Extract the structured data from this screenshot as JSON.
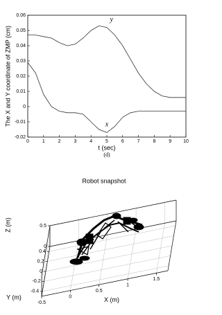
{
  "chart_data": [
    {
      "type": "line",
      "title": "(d)",
      "xlabel": "t (sec)",
      "ylabel": "The X and Y coordinate of ZMP (cm)",
      "x": [
        0,
        0.5,
        1,
        1.5,
        2,
        2.5,
        3,
        3.5,
        4,
        4.5,
        5,
        5.5,
        6,
        6.5,
        7,
        7.5,
        8,
        8.5,
        9,
        9.5,
        10
      ],
      "series": [
        {
          "name": "y",
          "color": "#333333",
          "values": [
            0.047,
            0.047,
            0.046,
            0.045,
            0.042,
            0.04,
            0.041,
            0.045,
            0.05,
            0.053,
            0.052,
            0.047,
            0.04,
            0.031,
            0.022,
            0.015,
            0.01,
            0.007,
            0.006,
            0.006,
            0.006
          ]
        },
        {
          "name": "x",
          "color": "#333333",
          "values": [
            0.029,
            0.022,
            0.008,
            0.0,
            -0.003,
            -0.004,
            -0.004,
            -0.005,
            -0.01,
            -0.015,
            -0.017,
            -0.013,
            -0.007,
            -0.004,
            -0.003,
            -0.003,
            -0.003,
            -0.003,
            -0.003,
            -0.003,
            -0.003
          ]
        }
      ],
      "xlim": [
        0,
        10
      ],
      "xticks": [
        0,
        1,
        2,
        3,
        4,
        5,
        6,
        7,
        8,
        9,
        10
      ],
      "ylim": [
        -0.02,
        0.06
      ],
      "yticks": [
        -0.02,
        -0.01,
        0,
        0.01,
        0.02,
        0.03,
        0.04,
        0.05,
        0.06
      ]
    },
    {
      "type": "3d",
      "title": "Robot snapshot",
      "xlabel": "X (m)",
      "ylabel": "Y (m)",
      "zlabel": "Z (m)",
      "xlim": [
        -0.5,
        1.7
      ],
      "xticks": [
        -0.5,
        0,
        0.5,
        1,
        1.5
      ],
      "ylim": [
        -0.5,
        0.5
      ],
      "yticks": [
        -0.4,
        -0.2,
        0,
        0.2,
        0.4
      ],
      "zlim": [
        0,
        0.5
      ],
      "zticks": [
        0,
        0.5
      ],
      "grid": true
    }
  ]
}
